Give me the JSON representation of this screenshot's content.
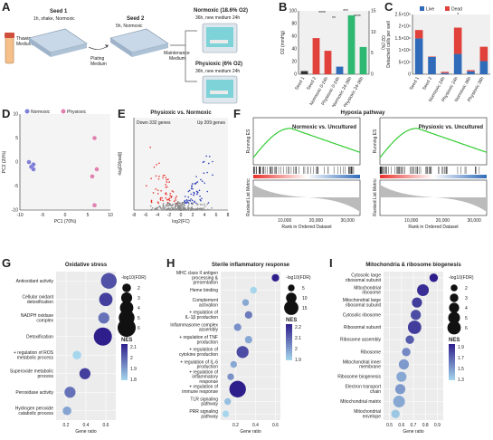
{
  "panel_letters": [
    "A",
    "B",
    "C",
    "D",
    "E",
    "F",
    "G",
    "H",
    "I"
  ],
  "panel_a": {
    "seed1_title": "Seed 1",
    "seed1_sub": "1h, shake, Normoxic",
    "seed2_title": "Seed 2",
    "seed2_sub": "5h, Normoxic",
    "thawing": "Thawing\nMedium",
    "plating": "Plating\nMedium",
    "maintenance": "Maintenance\nMedium",
    "normoxic_title": "Normoxic (18.6% O2)",
    "normoxic_sub": "36h, new medium 24h",
    "physioxic_title": "Physioxic (6% O2)",
    "physioxic_sub": "36h, new medium 24h"
  },
  "colors": {
    "normoxic": "#8080d8",
    "physioxic": "#e080b0",
    "bar_red": "#e0413a",
    "bar_blue": "#2f6bb8",
    "bar_green": "#2eb872",
    "gsea_line": "#33cc33",
    "down": "#e8302a",
    "up": "#2f3fb8"
  },
  "chart_data": [
    {
      "id": "B",
      "type": "bar",
      "ylabel": "O2 (mmHg)",
      "y2label": "O2 (%)",
      "ylim": [
        0,
        100
      ],
      "categories": [
        "Seed 1",
        "Seed 2",
        "Normoxic 0-24h",
        "Physioxic 0-24h",
        "Normoxic 24-36h",
        "Physioxic 24-36h"
      ],
      "values": [
        5,
        57,
        37,
        12,
        93,
        43
      ],
      "yticks": [
        0,
        20,
        40,
        60,
        80,
        100
      ],
      "y2ticks": [
        0,
        5,
        10,
        15
      ],
      "significance": [
        "****",
        "**",
        "***",
        "****"
      ]
    },
    {
      "id": "C",
      "type": "bar",
      "ylabel": "Detached cells per well",
      "ylim": [
        0,
        2.5
      ],
      "categories": [
        "Seed 1",
        "Seed 2",
        "Normoxic 24h",
        "Physioxic 24h",
        "Normoxic 36h",
        "Physioxic 36h"
      ],
      "series": [
        {
          "name": "Live",
          "values": [
            1.5,
            0.72,
            0.05,
            0.85,
            0.12,
            0.55
          ]
        },
        {
          "name": "Dead",
          "values": [
            0.35,
            0.02,
            0.05,
            1.1,
            0.05,
            0.6
          ]
        }
      ],
      "yticks": [
        "0",
        "5×10⁵",
        "1×10⁶",
        "1.5×10⁶",
        "2×10⁶",
        "2.5×10⁶"
      ],
      "significance": [
        "*"
      ]
    },
    {
      "id": "D",
      "type": "scatter",
      "xlabel": "PC1 (70%)",
      "ylabel": "PC2 (20%)",
      "xlim": [
        -10,
        10
      ],
      "ylim": [
        -10,
        10
      ],
      "xticks": [
        -10,
        -5,
        0,
        5,
        10
      ],
      "yticks": [
        -10,
        -5,
        0,
        5,
        10
      ],
      "series": [
        {
          "name": "Normoxic",
          "points": [
            [
              -8,
              0
            ],
            [
              -7.5,
              -1
            ],
            [
              -7,
              -0.5
            ],
            [
              -7,
              -1.5
            ]
          ]
        },
        {
          "name": "Physioxic",
          "points": [
            [
              6.5,
              5
            ],
            [
              7,
              -1.5
            ],
            [
              6,
              -3
            ],
            [
              6.5,
              -9
            ]
          ]
        }
      ]
    },
    {
      "id": "E",
      "type": "scatter",
      "title": "Physioxic vs. Normoxic",
      "xlabel": "log2(FC)",
      "ylabel": "-log10(padj)",
      "xticks": [
        -8,
        -6,
        -4,
        -2,
        0,
        2,
        4,
        6,
        8
      ],
      "annotations": [
        "Down 332 genes",
        "Up 209 genes"
      ]
    },
    {
      "id": "F",
      "type": "line",
      "title": "Hypoxia pathway",
      "panels": [
        {
          "name": "Normoxic vs. Uncultured",
          "xticks": [
            10000,
            20000,
            30000
          ]
        },
        {
          "name": "Physioxic vs. Uncultured",
          "xticks": [
            10000,
            20000,
            30000
          ]
        }
      ],
      "ylabel_top": "Running ES",
      "ylabel_bottom": "Ranked List Metric",
      "xlabel": "Rank in Ordered Dataset"
    },
    {
      "id": "G",
      "type": "scatter",
      "title": "Oxidative stress",
      "xlabel": "Gene ratio",
      "xticks": [
        0.2,
        0.4,
        0.6
      ],
      "xlim": [
        0.1,
        0.7
      ],
      "categories": [
        "Antioxidant activity",
        "Cellular oxidant detoxification",
        "NADPH oxidase complex",
        "Detoxification",
        "+ regulation of ROS metabolic process",
        "Superoxide metabolic process",
        "Peroxidase activity",
        "Hydrogen peroxide catabolic process"
      ],
      "x": [
        0.63,
        0.6,
        0.58,
        0.57,
        0.31,
        0.39,
        0.24,
        0.21
      ],
      "size": [
        5,
        4,
        3,
        6,
        2,
        3,
        3,
        2
      ],
      "nes": [
        2.15,
        2.2,
        2.05,
        2.3,
        1.75,
        2.2,
        2.05,
        1.9
      ],
      "size_legend_title": "-log10(FDR)",
      "size_legend": [
        2,
        3,
        4,
        5,
        6
      ],
      "nes_legend_title": "NES",
      "nes_ticks": [
        2.1,
        2.0,
        1.9,
        1.8
      ]
    },
    {
      "id": "H",
      "type": "scatter",
      "title": "Sterile inflammatory response",
      "xlabel": "Gene ratio",
      "xticks": [
        0.2,
        0.4,
        0.6
      ],
      "xlim": [
        0.05,
        0.65
      ],
      "categories": [
        "MHC class II antigen processing & presentation",
        "Heme binding",
        "Complement activation",
        "+ regulation of IL-1β production",
        "Inflammasome complex assembly",
        "+ regulation of TNF production",
        "+ regulation of cytokine production",
        "+ regulation of IL-6 production",
        "+ regulation of inflammatory response",
        "+ regulation of immune response",
        "TLR signaling pathway",
        "PRR signaling pathway"
      ],
      "x": [
        0.6,
        0.38,
        0.3,
        0.33,
        0.22,
        0.33,
        0.27,
        0.18,
        0.15,
        0.22,
        0.12,
        0.1
      ],
      "size": [
        6,
        5,
        5,
        6,
        6,
        6,
        12,
        5,
        5,
        18,
        5,
        5
      ],
      "nes": [
        2.3,
        1.9,
        2.0,
        2.1,
        2.05,
        2.0,
        2.2,
        2.0,
        2.05,
        2.3,
        1.95,
        1.9
      ],
      "size_legend_title": "-log10(FDR)",
      "size_legend": [
        5,
        10,
        15
      ],
      "nes_legend_title": "NES",
      "nes_ticks": [
        2.2,
        2.1,
        2.0,
        1.9
      ]
    },
    {
      "id": "I",
      "type": "scatter",
      "title": "Mitochondria & ribosome biogenesis",
      "xlabel": "Gene ratio",
      "xticks": [
        0.5,
        0.6,
        0.7,
        0.8,
        0.9
      ],
      "xlim": [
        0.45,
        0.95
      ],
      "categories": [
        "Cytosolic large ribosomal subunit",
        "Mitochondrial ribosome",
        "Mitochondrial large ribosomal subunit",
        "Cytosolic ribosome",
        "Ribosomal subunit",
        "Ribosome assembly",
        "Ribosome",
        "Mitochondrial inner membrane",
        "Ribosome biogenesis",
        "Electron transport chain",
        "Mitochondrial matrix",
        "Mitochondrial envelope"
      ],
      "x": [
        0.87,
        0.78,
        0.73,
        0.72,
        0.71,
        0.67,
        0.64,
        0.62,
        0.6,
        0.59,
        0.58,
        0.55
      ],
      "size": [
        3,
        5,
        4,
        4,
        6,
        3,
        3,
        4,
        4,
        4,
        5,
        3
      ],
      "nes": [
        1.9,
        1.85,
        1.8,
        1.75,
        1.8,
        1.7,
        1.55,
        1.5,
        1.45,
        1.5,
        1.45,
        1.35
      ],
      "size_legend_title": "-log10(FDR)",
      "size_legend": [
        2,
        3,
        4,
        5,
        6
      ],
      "nes_legend_title": "NES",
      "nes_ticks": [
        1.9,
        1.7,
        1.5,
        1.3
      ]
    }
  ]
}
